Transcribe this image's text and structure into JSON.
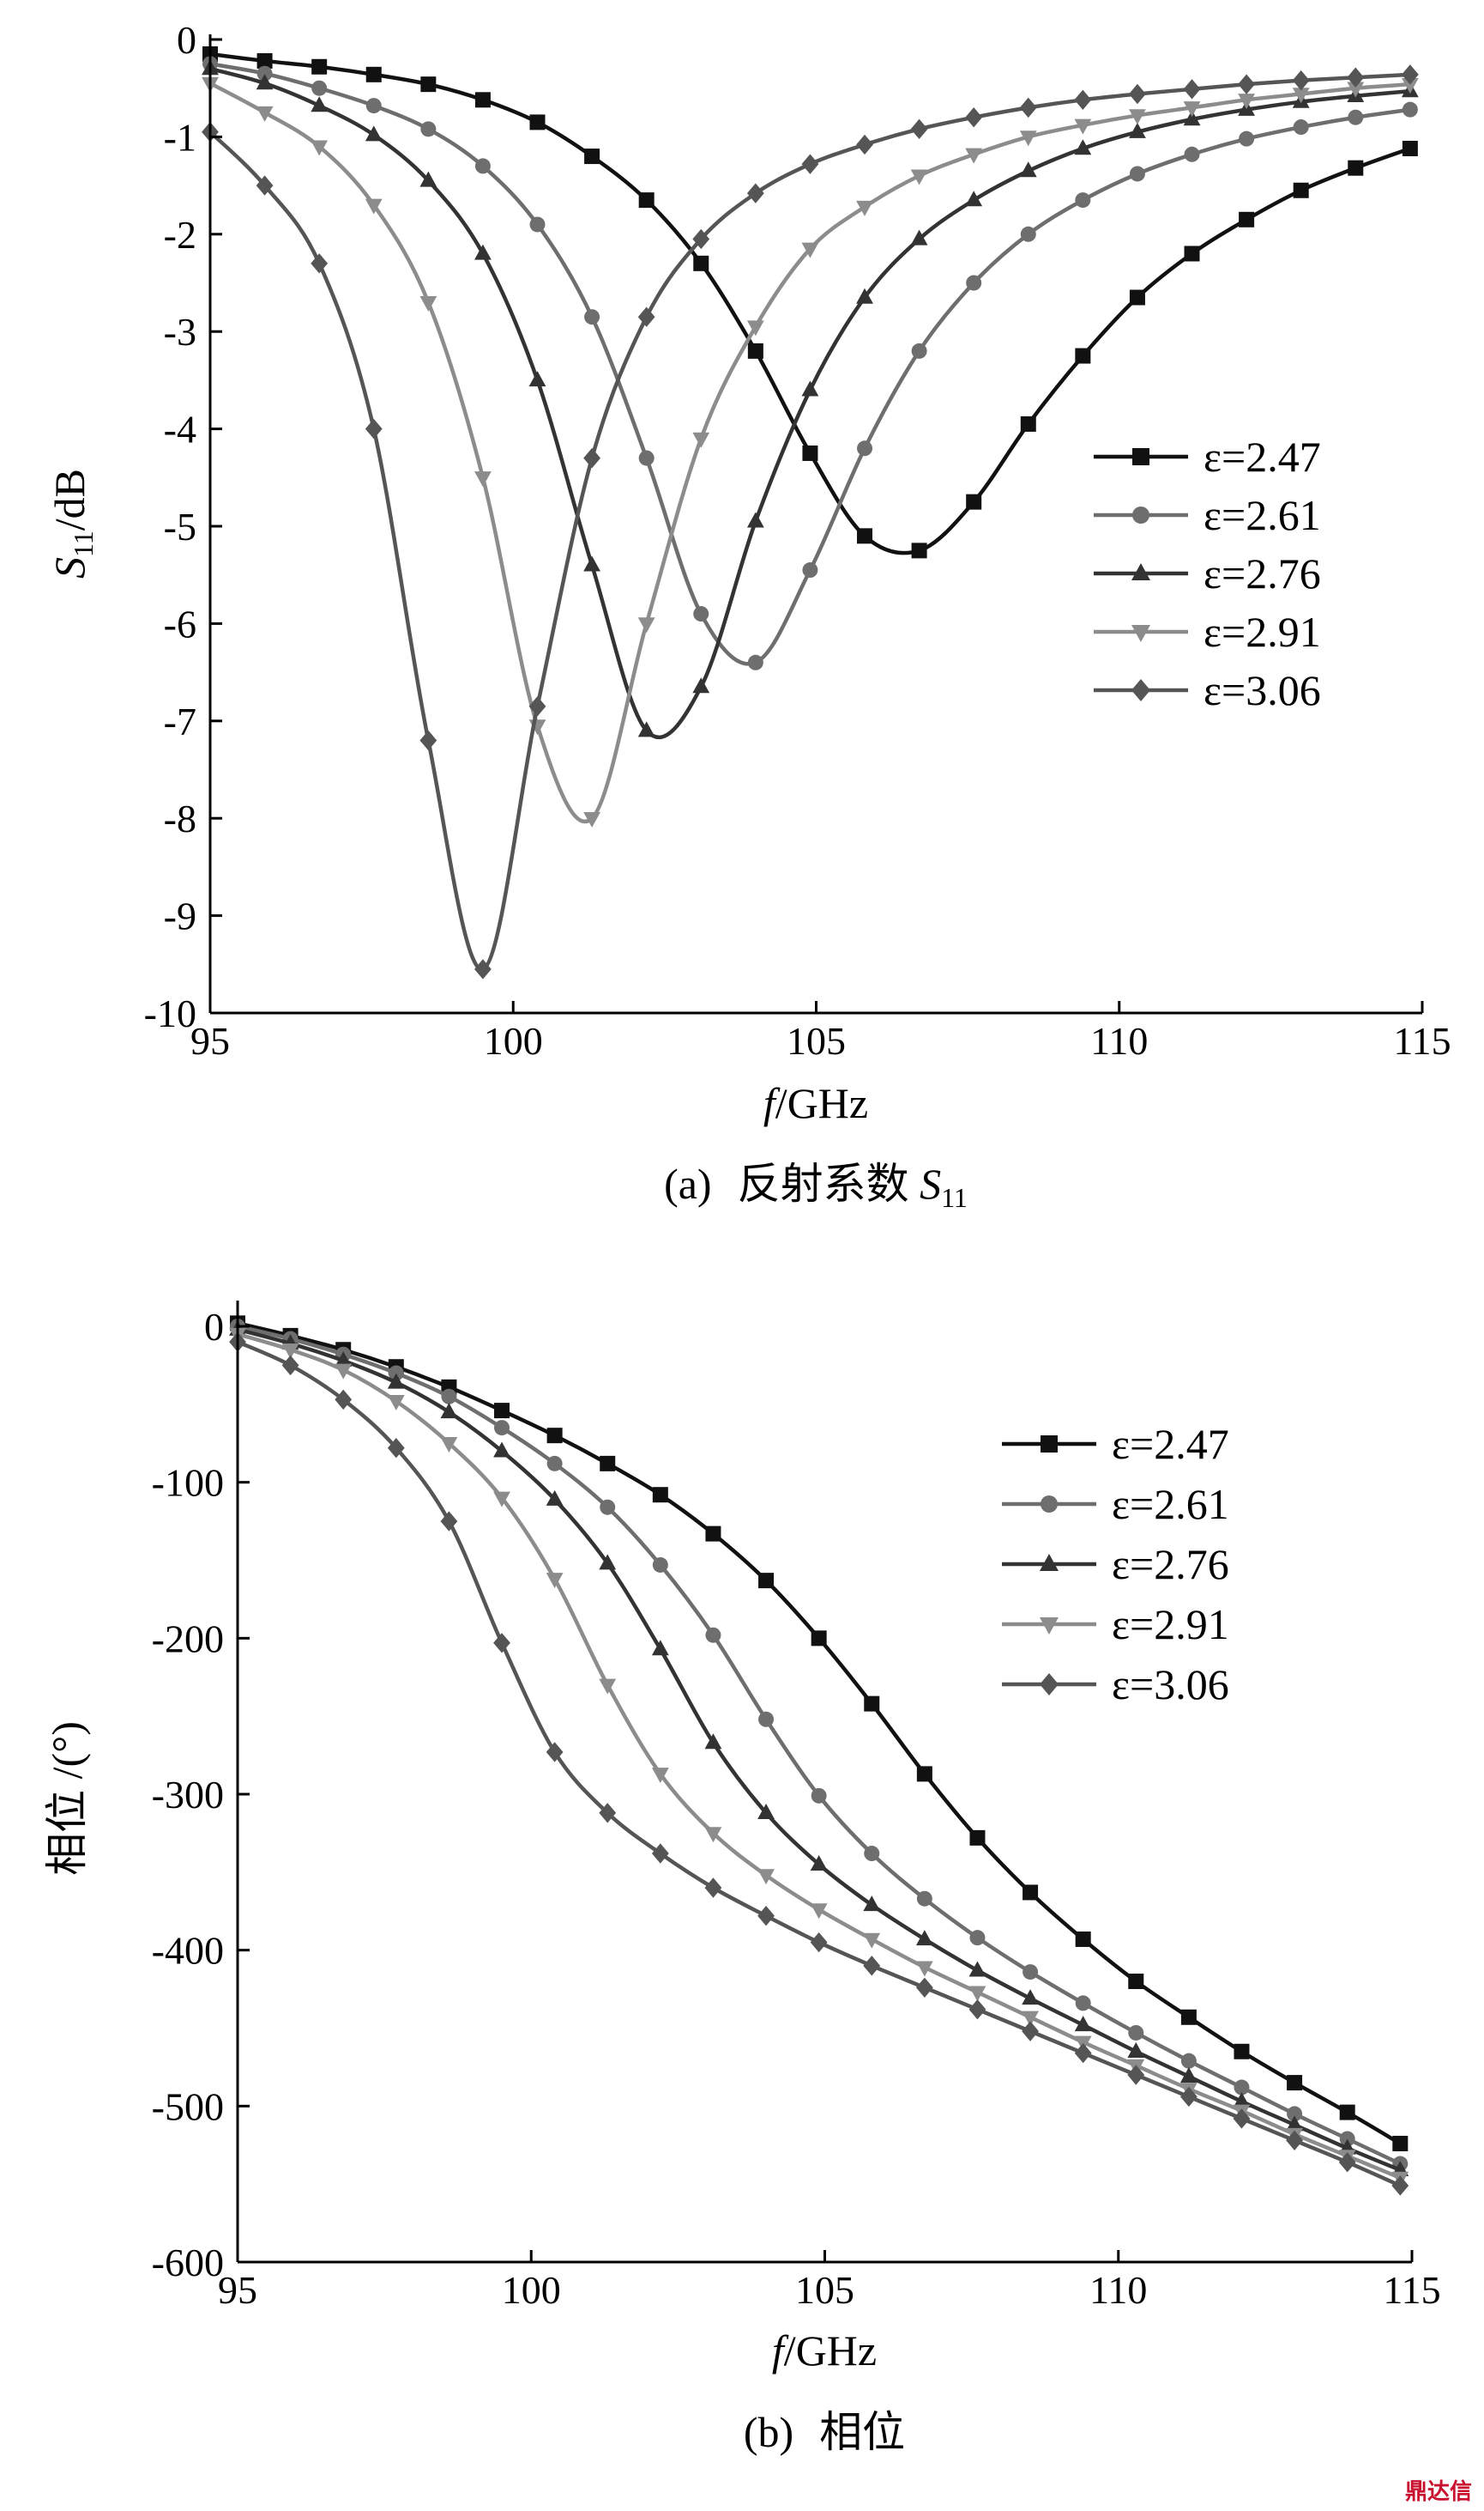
{
  "chart_data": [
    {
      "type": "line",
      "panel": "a",
      "caption_prefix": "(a)",
      "caption_text": "反射系数 ",
      "caption_symbol": "S",
      "caption_sub": "11",
      "xlabel_italic": "f",
      "xlabel_rest": "/GHz",
      "ylabel_main": "S",
      "ylabel_sub": "11",
      "ylabel_rest": "/dB",
      "xlim": [
        95,
        115
      ],
      "ylim": [
        -10,
        0
      ],
      "xticks": [
        "95",
        "100",
        "105",
        "110",
        "115"
      ],
      "yticks": [
        "0",
        "-1",
        "-2",
        "-3",
        "-4",
        "-5",
        "-6",
        "-7",
        "-8",
        "-9",
        "-10"
      ],
      "legend_position": "right",
      "series": [
        {
          "name": "ε=2.47",
          "marker": "square",
          "color": "#111111",
          "points": [
            [
              95,
              -0.15
            ],
            [
              95.9,
              -0.22
            ],
            [
              96.8,
              -0.28
            ],
            [
              97.7,
              -0.36
            ],
            [
              98.6,
              -0.46
            ],
            [
              99.5,
              -0.62
            ],
            [
              100.4,
              -0.85
            ],
            [
              101.3,
              -1.2
            ],
            [
              102.2,
              -1.65
            ],
            [
              103.1,
              -2.3
            ],
            [
              104,
              -3.2
            ],
            [
              104.9,
              -4.25
            ],
            [
              105.8,
              -5.1
            ],
            [
              106.7,
              -5.25
            ],
            [
              107.6,
              -4.75
            ],
            [
              108.5,
              -3.95
            ],
            [
              109.4,
              -3.25
            ],
            [
              110.3,
              -2.65
            ],
            [
              111.2,
              -2.2
            ],
            [
              112.1,
              -1.85
            ],
            [
              113,
              -1.55
            ],
            [
              113.9,
              -1.32
            ],
            [
              114.8,
              -1.12
            ]
          ]
        },
        {
          "name": "ε=2.61",
          "marker": "circle",
          "color": "#6e6e6e",
          "points": [
            [
              95,
              -0.25
            ],
            [
              95.9,
              -0.35
            ],
            [
              96.8,
              -0.5
            ],
            [
              97.7,
              -0.68
            ],
            [
              98.6,
              -0.92
            ],
            [
              99.5,
              -1.3
            ],
            [
              100.4,
              -1.9
            ],
            [
              101.3,
              -2.85
            ],
            [
              102.2,
              -4.3
            ],
            [
              103.1,
              -5.9
            ],
            [
              104,
              -6.4
            ],
            [
              104.9,
              -5.45
            ],
            [
              105.8,
              -4.2
            ],
            [
              106.7,
              -3.2
            ],
            [
              107.6,
              -2.5
            ],
            [
              108.5,
              -2.0
            ],
            [
              109.4,
              -1.65
            ],
            [
              110.3,
              -1.38
            ],
            [
              111.2,
              -1.18
            ],
            [
              112.1,
              -1.02
            ],
            [
              113,
              -0.9
            ],
            [
              113.9,
              -0.8
            ],
            [
              114.8,
              -0.72
            ]
          ]
        },
        {
          "name": "ε=2.76",
          "marker": "triangle-up",
          "color": "#333333",
          "points": [
            [
              95,
              -0.3
            ],
            [
              95.9,
              -0.45
            ],
            [
              96.8,
              -0.68
            ],
            [
              97.7,
              -0.98
            ],
            [
              98.6,
              -1.45
            ],
            [
              99.5,
              -2.2
            ],
            [
              100.4,
              -3.5
            ],
            [
              101.3,
              -5.4
            ],
            [
              102.2,
              -7.1
            ],
            [
              103.1,
              -6.65
            ],
            [
              104,
              -4.95
            ],
            [
              104.9,
              -3.6
            ],
            [
              105.8,
              -2.65
            ],
            [
              106.7,
              -2.05
            ],
            [
              107.6,
              -1.65
            ],
            [
              108.5,
              -1.35
            ],
            [
              109.4,
              -1.12
            ],
            [
              110.3,
              -0.95
            ],
            [
              111.2,
              -0.82
            ],
            [
              112.1,
              -0.72
            ],
            [
              113,
              -0.64
            ],
            [
              113.9,
              -0.58
            ],
            [
              114.8,
              -0.53
            ]
          ]
        },
        {
          "name": "ε=2.91",
          "marker": "triangle-down",
          "color": "#8c8c8c",
          "points": [
            [
              95,
              -0.45
            ],
            [
              95.9,
              -0.75
            ],
            [
              96.8,
              -1.1
            ],
            [
              97.7,
              -1.7
            ],
            [
              98.6,
              -2.7
            ],
            [
              99.5,
              -4.5
            ],
            [
              100.4,
              -7.05
            ],
            [
              101.3,
              -8.0
            ],
            [
              102.2,
              -6.0
            ],
            [
              103.1,
              -4.1
            ],
            [
              104,
              -2.95
            ],
            [
              104.9,
              -2.15
            ],
            [
              105.8,
              -1.72
            ],
            [
              106.7,
              -1.4
            ],
            [
              107.6,
              -1.18
            ],
            [
              108.5,
              -1.0
            ],
            [
              109.4,
              -0.88
            ],
            [
              110.3,
              -0.78
            ],
            [
              111.2,
              -0.7
            ],
            [
              112.1,
              -0.62
            ],
            [
              113,
              -0.56
            ],
            [
              113.9,
              -0.5
            ],
            [
              114.8,
              -0.46
            ]
          ]
        },
        {
          "name": "ε=3.06",
          "marker": "diamond",
          "color": "#555555",
          "points": [
            [
              95,
              -0.95
            ],
            [
              95.9,
              -1.5
            ],
            [
              96.8,
              -2.3
            ],
            [
              97.7,
              -4.0
            ],
            [
              98.6,
              -7.2
            ],
            [
              99.5,
              -9.55
            ],
            [
              100.4,
              -6.85
            ],
            [
              101.3,
              -4.3
            ],
            [
              102.2,
              -2.85
            ],
            [
              103.1,
              -2.05
            ],
            [
              104,
              -1.58
            ],
            [
              104.9,
              -1.28
            ],
            [
              105.8,
              -1.08
            ],
            [
              106.7,
              -0.92
            ],
            [
              107.6,
              -0.8
            ],
            [
              108.5,
              -0.7
            ],
            [
              109.4,
              -0.62
            ],
            [
              110.3,
              -0.56
            ],
            [
              111.2,
              -0.51
            ],
            [
              112.1,
              -0.46
            ],
            [
              113,
              -0.42
            ],
            [
              113.9,
              -0.39
            ],
            [
              114.8,
              -0.36
            ]
          ]
        }
      ]
    },
    {
      "type": "line",
      "panel": "b",
      "caption_prefix": "(b)",
      "caption_text": "相位",
      "xlabel_italic": "f",
      "xlabel_rest": "/GHz",
      "ylabel_main": "相位 /(°)",
      "xlim": [
        95,
        115
      ],
      "ylim": [
        -600,
        0
      ],
      "xticks": [
        "95",
        "100",
        "105",
        "110",
        "115"
      ],
      "yticks": [
        "0",
        "-100",
        "-200",
        "-300",
        "-400",
        "-500",
        "-600"
      ],
      "legend_position": "top-right",
      "series": [
        {
          "name": "ε=2.47",
          "marker": "square",
          "color": "#111111",
          "points": [
            [
              95,
              2
            ],
            [
              95.9,
              -6
            ],
            [
              96.8,
              -15
            ],
            [
              97.7,
              -26
            ],
            [
              98.6,
              -39
            ],
            [
              99.5,
              -54
            ],
            [
              100.4,
              -70
            ],
            [
              101.3,
              -88
            ],
            [
              102.2,
              -108
            ],
            [
              103.1,
              -133
            ],
            [
              104,
              -163
            ],
            [
              104.9,
              -200
            ],
            [
              105.8,
              -242
            ],
            [
              106.7,
              -287
            ],
            [
              107.6,
              -328
            ],
            [
              108.5,
              -363
            ],
            [
              109.4,
              -393
            ],
            [
              110.3,
              -420
            ],
            [
              111.2,
              -443
            ],
            [
              112.1,
              -465
            ],
            [
              113,
              -485
            ],
            [
              113.9,
              -504
            ],
            [
              114.8,
              -524
            ]
          ]
        },
        {
          "name": "ε=2.61",
          "marker": "circle",
          "color": "#6e6e6e",
          "points": [
            [
              95,
              0
            ],
            [
              95.9,
              -8
            ],
            [
              96.8,
              -18
            ],
            [
              97.7,
              -30
            ],
            [
              98.6,
              -45
            ],
            [
              99.5,
              -65
            ],
            [
              100.4,
              -88
            ],
            [
              101.3,
              -116
            ],
            [
              102.2,
              -153
            ],
            [
              103.1,
              -198
            ],
            [
              104,
              -252
            ],
            [
              104.9,
              -301
            ],
            [
              105.8,
              -338
            ],
            [
              106.7,
              -367
            ],
            [
              107.6,
              -392
            ],
            [
              108.5,
              -414
            ],
            [
              109.4,
              -434
            ],
            [
              110.3,
              -453
            ],
            [
              111.2,
              -471
            ],
            [
              112.1,
              -488
            ],
            [
              113,
              -505
            ],
            [
              113.9,
              -521
            ],
            [
              114.8,
              -537
            ]
          ]
        },
        {
          "name": "ε=2.76",
          "marker": "triangle-up",
          "color": "#333333",
          "points": [
            [
              95,
              -2
            ],
            [
              95.9,
              -11
            ],
            [
              96.8,
              -22
            ],
            [
              97.7,
              -36
            ],
            [
              98.6,
              -55
            ],
            [
              99.5,
              -80
            ],
            [
              100.4,
              -111
            ],
            [
              101.3,
              -152
            ],
            [
              102.2,
              -207
            ],
            [
              103.1,
              -267
            ],
            [
              104,
              -312
            ],
            [
              104.9,
              -345
            ],
            [
              105.8,
              -371
            ],
            [
              106.7,
              -393
            ],
            [
              107.6,
              -413
            ],
            [
              108.5,
              -431
            ],
            [
              109.4,
              -448
            ],
            [
              110.3,
              -465
            ],
            [
              111.2,
              -481
            ],
            [
              112.1,
              -497
            ],
            [
              113,
              -512
            ],
            [
              113.9,
              -527
            ],
            [
              114.8,
              -541
            ]
          ]
        },
        {
          "name": "ε=2.91",
          "marker": "triangle-down",
          "color": "#8c8c8c",
          "points": [
            [
              95,
              -5
            ],
            [
              95.9,
              -15
            ],
            [
              96.8,
              -28
            ],
            [
              97.7,
              -48
            ],
            [
              98.6,
              -75
            ],
            [
              99.5,
              -110
            ],
            [
              100.4,
              -162
            ],
            [
              101.3,
              -230
            ],
            [
              102.2,
              -287
            ],
            [
              103.1,
              -325
            ],
            [
              104,
              -352
            ],
            [
              104.9,
              -374
            ],
            [
              105.8,
              -393
            ],
            [
              106.7,
              -411
            ],
            [
              107.6,
              -427
            ],
            [
              108.5,
              -443
            ],
            [
              109.4,
              -459
            ],
            [
              110.3,
              -474
            ],
            [
              111.2,
              -489
            ],
            [
              112.1,
              -503
            ],
            [
              113,
              -518
            ],
            [
              113.9,
              -532
            ],
            [
              114.8,
              -546
            ]
          ]
        },
        {
          "name": "ε=3.06",
          "marker": "diamond",
          "color": "#555555",
          "points": [
            [
              95,
              -10
            ],
            [
              95.9,
              -25
            ],
            [
              96.8,
              -47
            ],
            [
              97.7,
              -78
            ],
            [
              98.6,
              -125
            ],
            [
              99.5,
              -203
            ],
            [
              100.4,
              -273
            ],
            [
              101.3,
              -312
            ],
            [
              102.2,
              -338
            ],
            [
              103.1,
              -360
            ],
            [
              104,
              -378
            ],
            [
              104.9,
              -395
            ],
            [
              105.8,
              -410
            ],
            [
              106.7,
              -424
            ],
            [
              107.6,
              -438
            ],
            [
              108.5,
              -452
            ],
            [
              109.4,
              -466
            ],
            [
              110.3,
              -480
            ],
            [
              111.2,
              -494
            ],
            [
              112.1,
              -508
            ],
            [
              113,
              -522
            ],
            [
              113.9,
              -536
            ],
            [
              114.8,
              -551
            ]
          ]
        }
      ]
    }
  ],
  "watermark": "鼎达信"
}
